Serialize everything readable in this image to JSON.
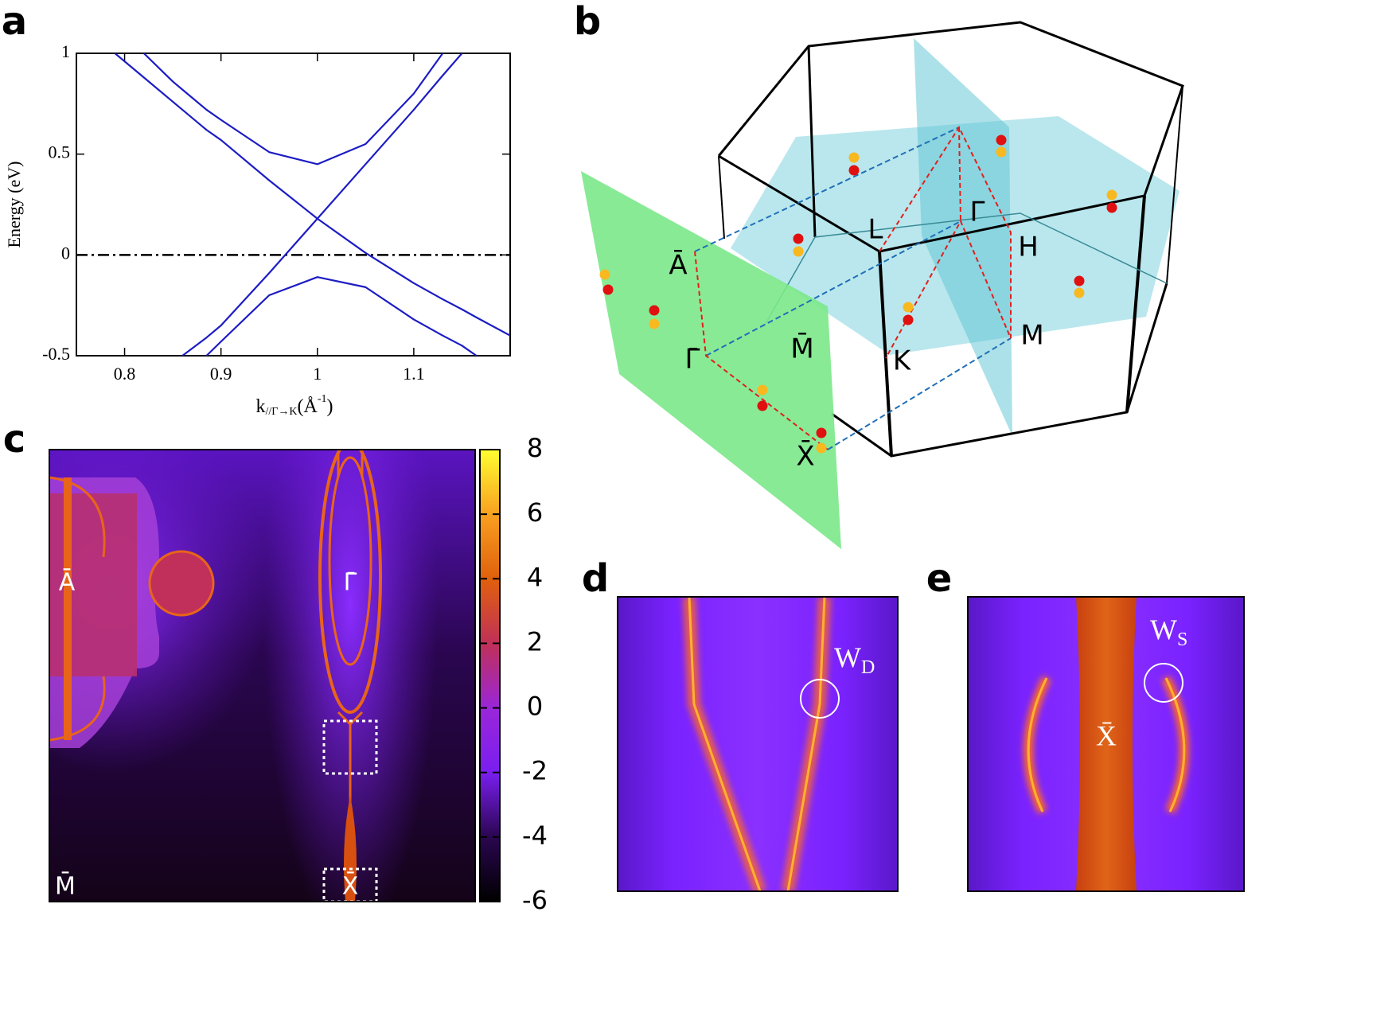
{
  "panel_labels": [
    "a",
    "b",
    "c",
    "d",
    "e"
  ],
  "chart_data": [
    {
      "type": "line",
      "ylabel": "Energy (eV)",
      "xlabel": [
        "k",
        "//Γ→K",
        "(Å",
        "-1",
        ")"
      ],
      "x": [
        0.79,
        0.8,
        0.82,
        0.85,
        0.86,
        0.885,
        0.9,
        0.95,
        1.0,
        1.05,
        1.1,
        1.13,
        1.15,
        1.165,
        1.2
      ],
      "xlim": [
        0.75,
        1.2
      ],
      "xticks": [
        0.8,
        0.9,
        1,
        1.1
      ],
      "ylim": [
        -0.5,
        1
      ],
      "yticks": [
        -0.5,
        0,
        0.5,
        1
      ],
      "series": [
        {
          "color": "#1c1cc4",
          "values": [
            1.0,
            0.96,
            0.88,
            0.76,
            0.72,
            0.62,
            0.57,
            0.37,
            0.18,
            0.01,
            -0.14,
            -0.22,
            -0.27,
            -0.31,
            -0.4
          ]
        },
        {
          "color": "#1c1cc4",
          "values": [
            null,
            null,
            null,
            null,
            -0.5,
            -0.41,
            -0.35,
            -0.09,
            0.18,
            0.45,
            0.72,
            0.89,
            1.0,
            null,
            null
          ]
        },
        {
          "color": "#1c1cc4",
          "values": [
            null,
            null,
            1.0,
            0.86,
            0.82,
            0.72,
            0.67,
            0.51,
            0.45,
            0.55,
            0.8,
            1.0,
            null,
            null,
            null
          ]
        },
        {
          "color": "#1c1cc4",
          "values": [
            null,
            null,
            null,
            null,
            null,
            -0.5,
            -0.43,
            -0.2,
            -0.11,
            -0.16,
            -0.32,
            -0.4,
            -0.45,
            -0.5,
            null
          ]
        }
      ],
      "reference_line": {
        "value": 0,
        "color": "#000000",
        "style": "dash-dot"
      }
    },
    {
      "type": "heatmap",
      "colormap": [
        "#000000",
        "#2a0650",
        "#7a1ef0",
        "#9a26d8",
        "#c03058",
        "#e0600c",
        "#f8a020",
        "#ffff30"
      ],
      "clim": [
        -6,
        8
      ],
      "cticks": [
        -6,
        -4,
        -2,
        0,
        2,
        4,
        6,
        8
      ],
      "labels": [
        "Ā",
        "Γ̄",
        "M̄",
        "X̄"
      ]
    }
  ],
  "diagram": {
    "labels": [
      "Ā",
      "Γ̄",
      "M̄",
      "X̄",
      "L",
      "Γ",
      "H",
      "K",
      "M"
    ]
  },
  "inset_d": {
    "weyl": [
      "W",
      "D"
    ]
  },
  "inset_e": {
    "weyl": [
      "W",
      "S"
    ],
    "point": "X̄"
  }
}
